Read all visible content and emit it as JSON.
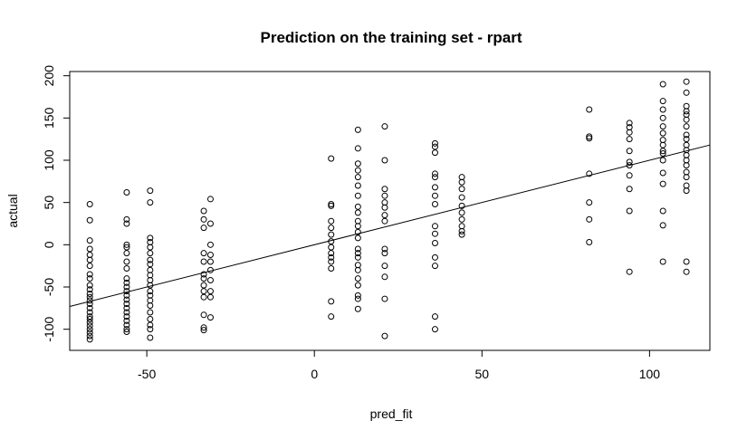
{
  "chart_data": {
    "type": "scatter",
    "title": "Prediction on the training set - rpart",
    "xlabel": "pred_fit",
    "ylabel": "actual",
    "xlim": [
      -73,
      118
    ],
    "ylim": [
      -125,
      205
    ],
    "xticks": [
      -50,
      0,
      50,
      100
    ],
    "yticks": [
      -100,
      -50,
      0,
      50,
      100,
      150,
      200
    ],
    "grid": false,
    "legend": "none",
    "reference_line": {
      "intercept": 0,
      "slope": 1
    },
    "series": [
      {
        "points": [
          [
            -67,
            48
          ],
          [
            -67,
            29
          ],
          [
            -67,
            5
          ],
          [
            -67,
            -5
          ],
          [
            -67,
            -12
          ],
          [
            -67,
            -18
          ],
          [
            -67,
            -25
          ],
          [
            -67,
            -35
          ],
          [
            -67,
            -40
          ],
          [
            -67,
            -48
          ],
          [
            -67,
            -53
          ],
          [
            -67,
            -58
          ],
          [
            -67,
            -62
          ],
          [
            -67,
            -66
          ],
          [
            -67,
            -70
          ],
          [
            -67,
            -75
          ],
          [
            -67,
            -80
          ],
          [
            -67,
            -85
          ],
          [
            -67,
            -88
          ],
          [
            -67,
            -92
          ],
          [
            -67,
            -96
          ],
          [
            -67,
            -100
          ],
          [
            -67,
            -104
          ],
          [
            -67,
            -108
          ],
          [
            -67,
            -112
          ],
          [
            -56,
            62
          ],
          [
            -56,
            30
          ],
          [
            -56,
            25
          ],
          [
            -56,
            0
          ],
          [
            -56,
            -3
          ],
          [
            -56,
            -10
          ],
          [
            -56,
            -20
          ],
          [
            -56,
            -28
          ],
          [
            -56,
            -40
          ],
          [
            -56,
            -45
          ],
          [
            -56,
            -50
          ],
          [
            -56,
            -55
          ],
          [
            -56,
            -60
          ],
          [
            -56,
            -65
          ],
          [
            -56,
            -70
          ],
          [
            -56,
            -75
          ],
          [
            -56,
            -80
          ],
          [
            -56,
            -85
          ],
          [
            -56,
            -90
          ],
          [
            -56,
            -95
          ],
          [
            -56,
            -100
          ],
          [
            -56,
            -103
          ],
          [
            -49,
            64
          ],
          [
            -49,
            50
          ],
          [
            -49,
            8
          ],
          [
            -49,
            3
          ],
          [
            -49,
            -3
          ],
          [
            -49,
            -10
          ],
          [
            -49,
            -18
          ],
          [
            -49,
            -23
          ],
          [
            -49,
            -30
          ],
          [
            -49,
            -36
          ],
          [
            -49,
            -42
          ],
          [
            -49,
            -48
          ],
          [
            -49,
            -55
          ],
          [
            -49,
            -60
          ],
          [
            -49,
            -66
          ],
          [
            -49,
            -72
          ],
          [
            -49,
            -80
          ],
          [
            -49,
            -88
          ],
          [
            -49,
            -95
          ],
          [
            -49,
            -100
          ],
          [
            -49,
            -110
          ],
          [
            -33,
            40
          ],
          [
            -33,
            30
          ],
          [
            -33,
            20
          ],
          [
            -33,
            -10
          ],
          [
            -33,
            -20
          ],
          [
            -33,
            -35
          ],
          [
            -33,
            -40
          ],
          [
            -33,
            -48
          ],
          [
            -33,
            -55
          ],
          [
            -33,
            -62
          ],
          [
            -33,
            -83
          ],
          [
            -33,
            -98
          ],
          [
            -33,
            -101
          ],
          [
            -31,
            54
          ],
          [
            -31,
            25
          ],
          [
            -31,
            0
          ],
          [
            -31,
            -12
          ],
          [
            -31,
            -20
          ],
          [
            -31,
            -30
          ],
          [
            -31,
            -42
          ],
          [
            -31,
            -55
          ],
          [
            -31,
            -62
          ],
          [
            -31,
            -86
          ],
          [
            5,
            102
          ],
          [
            5,
            48
          ],
          [
            5,
            46
          ],
          [
            5,
            28
          ],
          [
            5,
            20
          ],
          [
            5,
            12
          ],
          [
            5,
            4
          ],
          [
            5,
            -3
          ],
          [
            5,
            -10
          ],
          [
            5,
            -15
          ],
          [
            5,
            -20
          ],
          [
            5,
            -28
          ],
          [
            5,
            -67
          ],
          [
            5,
            -85
          ],
          [
            13,
            136
          ],
          [
            13,
            114
          ],
          [
            13,
            96
          ],
          [
            13,
            88
          ],
          [
            13,
            80
          ],
          [
            13,
            70
          ],
          [
            13,
            58
          ],
          [
            13,
            45
          ],
          [
            13,
            38
          ],
          [
            13,
            28
          ],
          [
            13,
            22
          ],
          [
            13,
            15
          ],
          [
            13,
            8
          ],
          [
            13,
            -5
          ],
          [
            13,
            -10
          ],
          [
            13,
            -15
          ],
          [
            13,
            -24
          ],
          [
            13,
            -30
          ],
          [
            13,
            -40
          ],
          [
            13,
            -48
          ],
          [
            13,
            -60
          ],
          [
            13,
            -64
          ],
          [
            13,
            -76
          ],
          [
            21,
            140
          ],
          [
            21,
            100
          ],
          [
            21,
            66
          ],
          [
            21,
            58
          ],
          [
            21,
            50
          ],
          [
            21,
            44
          ],
          [
            21,
            35
          ],
          [
            21,
            28
          ],
          [
            21,
            -5
          ],
          [
            21,
            -10
          ],
          [
            21,
            -25
          ],
          [
            21,
            -38
          ],
          [
            21,
            -64
          ],
          [
            21,
            -108
          ],
          [
            36,
            120
          ],
          [
            36,
            116
          ],
          [
            36,
            109
          ],
          [
            36,
            84
          ],
          [
            36,
            80
          ],
          [
            36,
            68
          ],
          [
            36,
            58
          ],
          [
            36,
            48
          ],
          [
            36,
            22
          ],
          [
            36,
            13
          ],
          [
            36,
            2
          ],
          [
            36,
            -15
          ],
          [
            36,
            -25
          ],
          [
            36,
            -85
          ],
          [
            36,
            -100
          ],
          [
            44,
            80
          ],
          [
            44,
            74
          ],
          [
            44,
            66
          ],
          [
            44,
            56
          ],
          [
            44,
            46
          ],
          [
            44,
            38
          ],
          [
            44,
            30
          ],
          [
            44,
            22
          ],
          [
            44,
            16
          ],
          [
            44,
            12
          ],
          [
            82,
            160
          ],
          [
            82,
            128
          ],
          [
            82,
            126
          ],
          [
            82,
            84
          ],
          [
            82,
            50
          ],
          [
            82,
            30
          ],
          [
            82,
            3
          ],
          [
            94,
            144
          ],
          [
            94,
            139
          ],
          [
            94,
            133
          ],
          [
            94,
            125
          ],
          [
            94,
            111
          ],
          [
            94,
            98
          ],
          [
            94,
            94
          ],
          [
            94,
            82
          ],
          [
            94,
            66
          ],
          [
            94,
            40
          ],
          [
            94,
            -32
          ],
          [
            104,
            190
          ],
          [
            104,
            170
          ],
          [
            104,
            160
          ],
          [
            104,
            150
          ],
          [
            104,
            140
          ],
          [
            104,
            132
          ],
          [
            104,
            124
          ],
          [
            104,
            118
          ],
          [
            104,
            111
          ],
          [
            104,
            108
          ],
          [
            104,
            100
          ],
          [
            104,
            85
          ],
          [
            104,
            72
          ],
          [
            104,
            40
          ],
          [
            104,
            23
          ],
          [
            104,
            -20
          ],
          [
            111,
            193
          ],
          [
            111,
            180
          ],
          [
            111,
            164
          ],
          [
            111,
            158
          ],
          [
            111,
            154
          ],
          [
            111,
            148
          ],
          [
            111,
            140
          ],
          [
            111,
            130
          ],
          [
            111,
            125
          ],
          [
            111,
            118
          ],
          [
            111,
            112
          ],
          [
            111,
            106
          ],
          [
            111,
            100
          ],
          [
            111,
            94
          ],
          [
            111,
            86
          ],
          [
            111,
            80
          ],
          [
            111,
            70
          ],
          [
            111,
            64
          ],
          [
            111,
            -20
          ],
          [
            111,
            -32
          ]
        ]
      }
    ]
  }
}
